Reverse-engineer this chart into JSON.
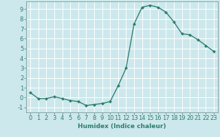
{
  "x": [
    0,
    1,
    2,
    3,
    4,
    5,
    6,
    7,
    8,
    9,
    10,
    11,
    12,
    13,
    14,
    15,
    16,
    17,
    18,
    19,
    20,
    21,
    22,
    23
  ],
  "y": [
    0.5,
    -0.1,
    -0.1,
    0.1,
    -0.1,
    -0.3,
    -0.4,
    -0.8,
    -0.7,
    -0.6,
    -0.4,
    1.2,
    3.0,
    7.5,
    9.2,
    9.4,
    9.2,
    8.7,
    7.7,
    6.5,
    6.4,
    5.9,
    5.3,
    4.7
  ],
  "line_color": "#2e7d6e",
  "marker": "D",
  "marker_size": 2,
  "bg_color": "#cce8ec",
  "grid_color": "#ffffff",
  "xlabel": "Humidex (Indice chaleur)",
  "xlim": [
    -0.5,
    23.5
  ],
  "ylim": [
    -1.5,
    9.8
  ],
  "yticks": [
    -1,
    0,
    1,
    2,
    3,
    4,
    5,
    6,
    7,
    8,
    9
  ],
  "xticks": [
    0,
    1,
    2,
    3,
    4,
    5,
    6,
    7,
    8,
    9,
    10,
    11,
    12,
    13,
    14,
    15,
    16,
    17,
    18,
    19,
    20,
    21,
    22,
    23
  ],
  "xlabel_fontsize": 6.5,
  "tick_fontsize": 6,
  "line_width": 1.0
}
